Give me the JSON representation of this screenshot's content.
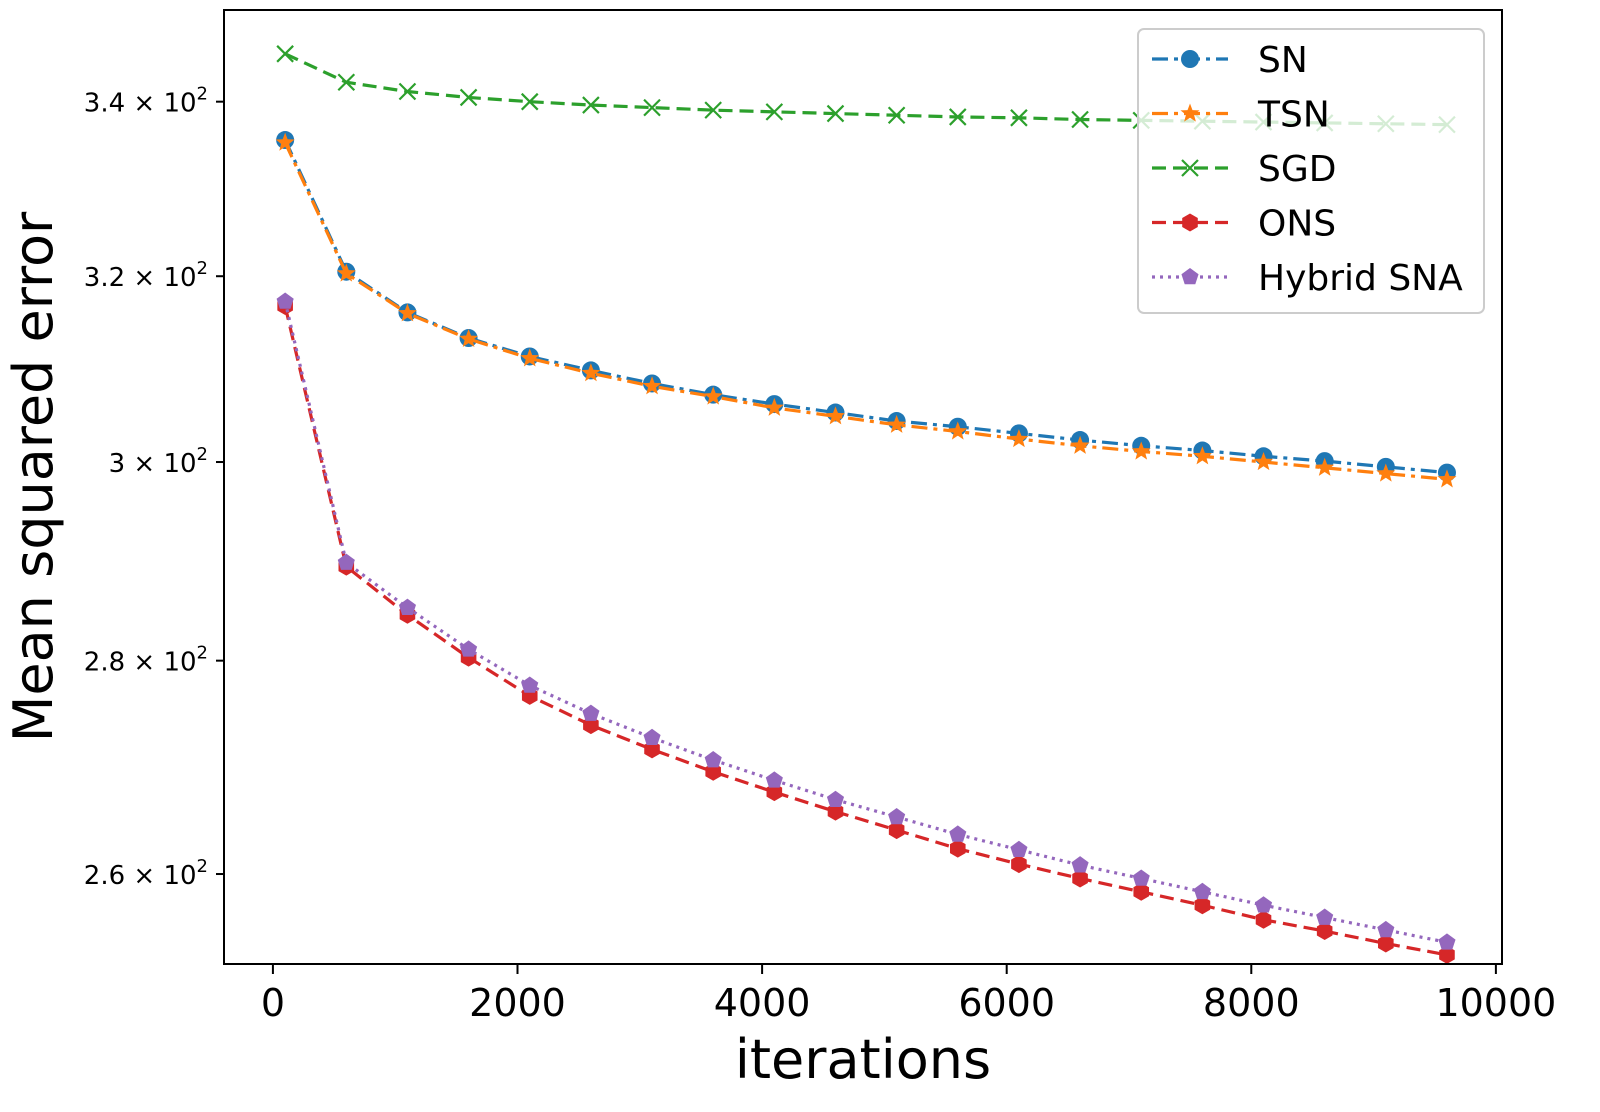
{
  "chart_data": {
    "type": "line",
    "title": "",
    "xlabel": "iterations",
    "ylabel": "Mean squared error",
    "y_scale": "log",
    "xlim": [
      -400,
      10050
    ],
    "ylim": [
      252,
      351
    ],
    "x_ticks": [
      0,
      2000,
      4000,
      6000,
      8000,
      10000
    ],
    "x_tick_labels": [
      "0",
      "2000",
      "4000",
      "6000",
      "8000",
      "10000"
    ],
    "y_ticks": [
      {
        "value": 260,
        "mantissa": "2.6",
        "times": "×",
        "base": "10",
        "exp": "2"
      },
      {
        "value": 280,
        "mantissa": "2.8",
        "times": "×",
        "base": "10",
        "exp": "2"
      },
      {
        "value": 300,
        "mantissa": "3",
        "times": "×",
        "base": "10",
        "exp": "2"
      },
      {
        "value": 320,
        "mantissa": "3.2",
        "times": "×",
        "base": "10",
        "exp": "2"
      },
      {
        "value": 340,
        "mantissa": "3.4",
        "times": "×",
        "base": "10",
        "exp": "2"
      }
    ],
    "legend_position": "top-right",
    "x": [
      100,
      600,
      1100,
      1600,
      2100,
      2600,
      3100,
      3600,
      4100,
      4600,
      5100,
      5600,
      6100,
      6600,
      7100,
      7600,
      8100,
      8600,
      9100,
      9600
    ],
    "series": [
      {
        "name": "SN",
        "color": "#1f77b4",
        "marker": "circle",
        "linestyle": "dashdot",
        "values": [
          335.5,
          320.5,
          316.0,
          313.2,
          311.2,
          309.7,
          308.3,
          307.1,
          306.1,
          305.2,
          304.3,
          303.7,
          303.0,
          302.3,
          301.7,
          301.2,
          300.6,
          300.1,
          299.5,
          298.9
        ]
      },
      {
        "name": "TSN",
        "color": "#ff7f0e",
        "marker": "star",
        "linestyle": "dashdot",
        "values": [
          335.2,
          320.3,
          315.9,
          313.1,
          311.0,
          309.4,
          308.0,
          306.9,
          305.7,
          304.8,
          303.9,
          303.2,
          302.4,
          301.7,
          301.1,
          300.6,
          300.0,
          299.4,
          298.8,
          298.2
        ]
      },
      {
        "name": "SGD",
        "color": "#2ca02c",
        "marker": "x",
        "linestyle": "dashed",
        "values": [
          345.7,
          342.3,
          341.2,
          340.5,
          340.0,
          339.6,
          339.3,
          339.0,
          338.8,
          338.6,
          338.4,
          338.2,
          338.1,
          337.9,
          337.8,
          337.7,
          337.6,
          337.5,
          337.4,
          337.3
        ]
      },
      {
        "name": "ONS",
        "color": "#d62728",
        "marker": "hexagon",
        "linestyle": "dashed",
        "values": [
          316.7,
          289.3,
          284.5,
          280.3,
          276.6,
          273.8,
          271.5,
          269.4,
          267.5,
          265.7,
          264.0,
          262.3,
          260.9,
          259.6,
          258.4,
          257.2,
          255.9,
          254.9,
          253.8,
          252.8
        ]
      },
      {
        "name": "Hybrid SNA",
        "color": "#9467bd",
        "marker": "pentagon",
        "linestyle": "dotted",
        "values": [
          317.2,
          289.7,
          285.2,
          281.1,
          277.6,
          274.9,
          272.6,
          270.5,
          268.6,
          266.8,
          265.2,
          263.6,
          262.2,
          260.8,
          259.6,
          258.4,
          257.2,
          256.1,
          255.0,
          253.9
        ]
      }
    ]
  }
}
